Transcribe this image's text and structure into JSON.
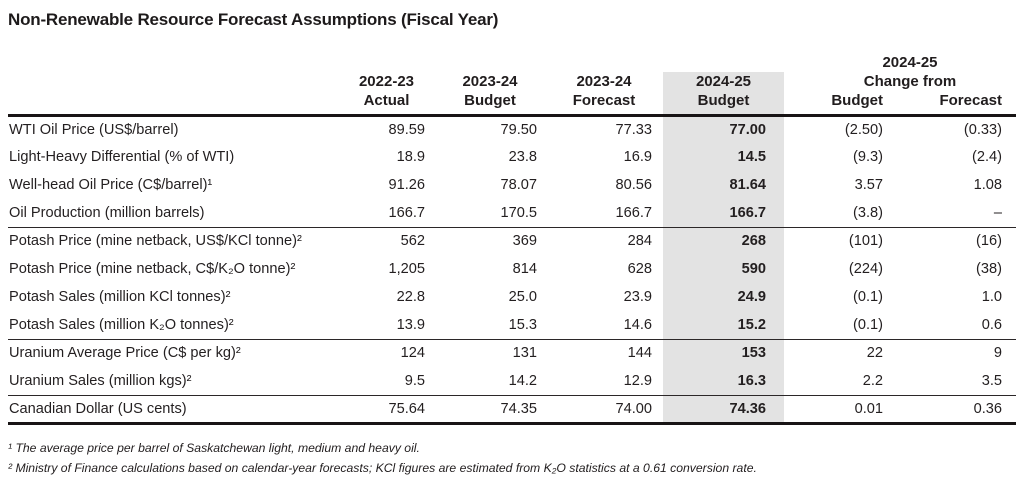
{
  "title": "Non-Renewable Resource Forecast Assumptions (Fiscal Year)",
  "colors": {
    "highlight_column": "#e3e3e3",
    "text": "#231f20",
    "rule": "#181415"
  },
  "table": {
    "columns": [
      {
        "year": "2022-23",
        "label": "Actual"
      },
      {
        "year": "2023-24",
        "label": "Budget"
      },
      {
        "year": "2023-24",
        "label": "Forecast"
      },
      {
        "year": "2024-25",
        "label": "Budget",
        "highlighted": true
      }
    ],
    "change_group": {
      "year": "2024-25",
      "label": "Change from",
      "sub_budget": "Budget",
      "sub_forecast": "Forecast"
    },
    "rows": [
      {
        "label": "WTI Oil Price (US$/barrel)",
        "values": [
          "89.59",
          "79.50",
          "77.33",
          "77.00",
          "(2.50)",
          "(0.33)"
        ]
      },
      {
        "label": "Light-Heavy Differential (% of WTI)",
        "values": [
          "18.9",
          "23.8",
          "16.9",
          "14.5",
          "(9.3)",
          "(2.4)"
        ]
      },
      {
        "label": "Well-head Oil Price (C$/barrel)¹",
        "values": [
          "91.26",
          "78.07",
          "80.56",
          "81.64",
          "3.57",
          "1.08"
        ]
      },
      {
        "label": "Oil Production (million barrels)",
        "values": [
          "166.7",
          "170.5",
          "166.7",
          "166.7",
          "(3.8)",
          "–"
        ]
      },
      {
        "label": "Potash Price (mine netback, US$/KCl tonne)²",
        "values": [
          "562",
          "369",
          "284",
          "268",
          "(101)",
          "(16)"
        ]
      },
      {
        "label": "Potash Price (mine netback, C$/K₂O tonne)²",
        "values": [
          "1,205",
          "814",
          "628",
          "590",
          "(224)",
          "(38)"
        ]
      },
      {
        "label": "Potash Sales (million KCl tonnes)²",
        "values": [
          "22.8",
          "25.0",
          "23.9",
          "24.9",
          "(0.1)",
          "1.0"
        ]
      },
      {
        "label": "Potash Sales (million K₂O tonnes)²",
        "values": [
          "13.9",
          "15.3",
          "14.6",
          "15.2",
          "(0.1)",
          "0.6"
        ]
      },
      {
        "label": "Uranium Average Price (C$ per kg)²",
        "values": [
          "124",
          "131",
          "144",
          "153",
          "22",
          "9"
        ]
      },
      {
        "label": "Uranium Sales (million kgs)²",
        "values": [
          "9.5",
          "14.2",
          "12.9",
          "16.3",
          "2.2",
          "3.5"
        ]
      },
      {
        "label": "Canadian Dollar (US cents)",
        "values": [
          "75.64",
          "74.35",
          "74.00",
          "74.36",
          "0.01",
          "0.36"
        ]
      }
    ]
  },
  "footnotes": [
    "¹ The average price per barrel of Saskatchewan light, medium and heavy oil.",
    "² Ministry of Finance calculations based on calendar-year forecasts; KCl figures are estimated from K₂O statistics at a 0.61 conversion rate."
  ]
}
